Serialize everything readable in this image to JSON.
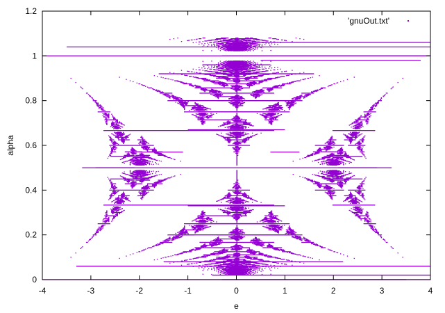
{
  "chart_data": {
    "type": "scatter",
    "title": "",
    "xlabel": "e",
    "ylabel": "alpha",
    "xlim": [
      -4,
      4
    ],
    "ylim": [
      0,
      1.2
    ],
    "x_ticks": [
      -4,
      -3,
      -2,
      -1,
      0,
      1,
      2,
      3,
      4
    ],
    "x_tick_labels": [
      "-4",
      "-3",
      "-2",
      "-1",
      "0",
      "1",
      "2",
      "3",
      "4"
    ],
    "y_ticks": [
      0,
      0.2,
      0.4,
      0.6,
      0.8,
      1.0,
      1.2
    ],
    "y_tick_labels": [
      "0",
      "0.2",
      "0.4",
      "0.6",
      "0.8",
      "1",
      "1.2"
    ],
    "grid": false,
    "legend_position": "top-right",
    "series": [
      {
        "name": "'gnuOut.txt'",
        "color": "#9400d3",
        "marker": "dot",
        "description": "Hofstadter butterfly spectrum: allowed energies e for each flux alpha",
        "segments": [
          {
            "alpha": 1.04,
            "e": [
              -3.5,
              4.0
            ]
          },
          {
            "alpha": 1.06,
            "e": [
              0.2,
              4.0
            ]
          },
          {
            "alpha": 1.0,
            "e": [
              -0.3,
              4.0
            ]
          },
          {
            "alpha": 0.98,
            "e": [
              0.5,
              3.8
            ]
          },
          {
            "alpha": 0.96,
            "e": [
              -0.7,
              0.7
            ]
          },
          {
            "alpha": 0.06,
            "e": [
              -3.3,
              4.0
            ]
          },
          {
            "alpha": 0.02,
            "e": [
              -0.5,
              4.0
            ]
          },
          {
            "alpha": 0.0,
            "e": [
              -0.3,
              3.5
            ]
          },
          {
            "alpha": 0.5,
            "e": [
              -2.9,
              -2.1
            ]
          },
          {
            "alpha": 0.55,
            "e": [
              -2.6,
              -1.8
            ]
          },
          {
            "alpha": 0.45,
            "e": [
              -2.6,
              -1.8
            ]
          },
          {
            "alpha": 0.5,
            "e": [
              2.1,
              2.9
            ]
          },
          {
            "alpha": 0.55,
            "e": [
              1.8,
              2.6
            ]
          },
          {
            "alpha": 0.45,
            "e": [
              1.8,
              2.6
            ]
          },
          {
            "alpha": 0.57,
            "e": [
              -2.0,
              -1.1
            ]
          },
          {
            "alpha": 0.57,
            "e": [
              0.7,
              1.3
            ]
          },
          {
            "alpha": 0.33,
            "e": [
              -1.0,
              1.0
            ]
          },
          {
            "alpha": 0.67,
            "e": [
              -1.0,
              1.0
            ]
          },
          {
            "alpha": 0.25,
            "e": [
              -0.8,
              0.8
            ]
          },
          {
            "alpha": 0.75,
            "e": [
              -0.8,
              0.8
            ]
          },
          {
            "alpha": 0.2,
            "e": [
              -1.2,
              1.2
            ]
          },
          {
            "alpha": 0.8,
            "e": [
              -1.2,
              1.2
            ]
          },
          {
            "alpha": 0.08,
            "e": [
              -1.5,
              2.2
            ]
          },
          {
            "alpha": 0.92,
            "e": [
              -1.6,
              1.6
            ]
          }
        ]
      }
    ]
  }
}
